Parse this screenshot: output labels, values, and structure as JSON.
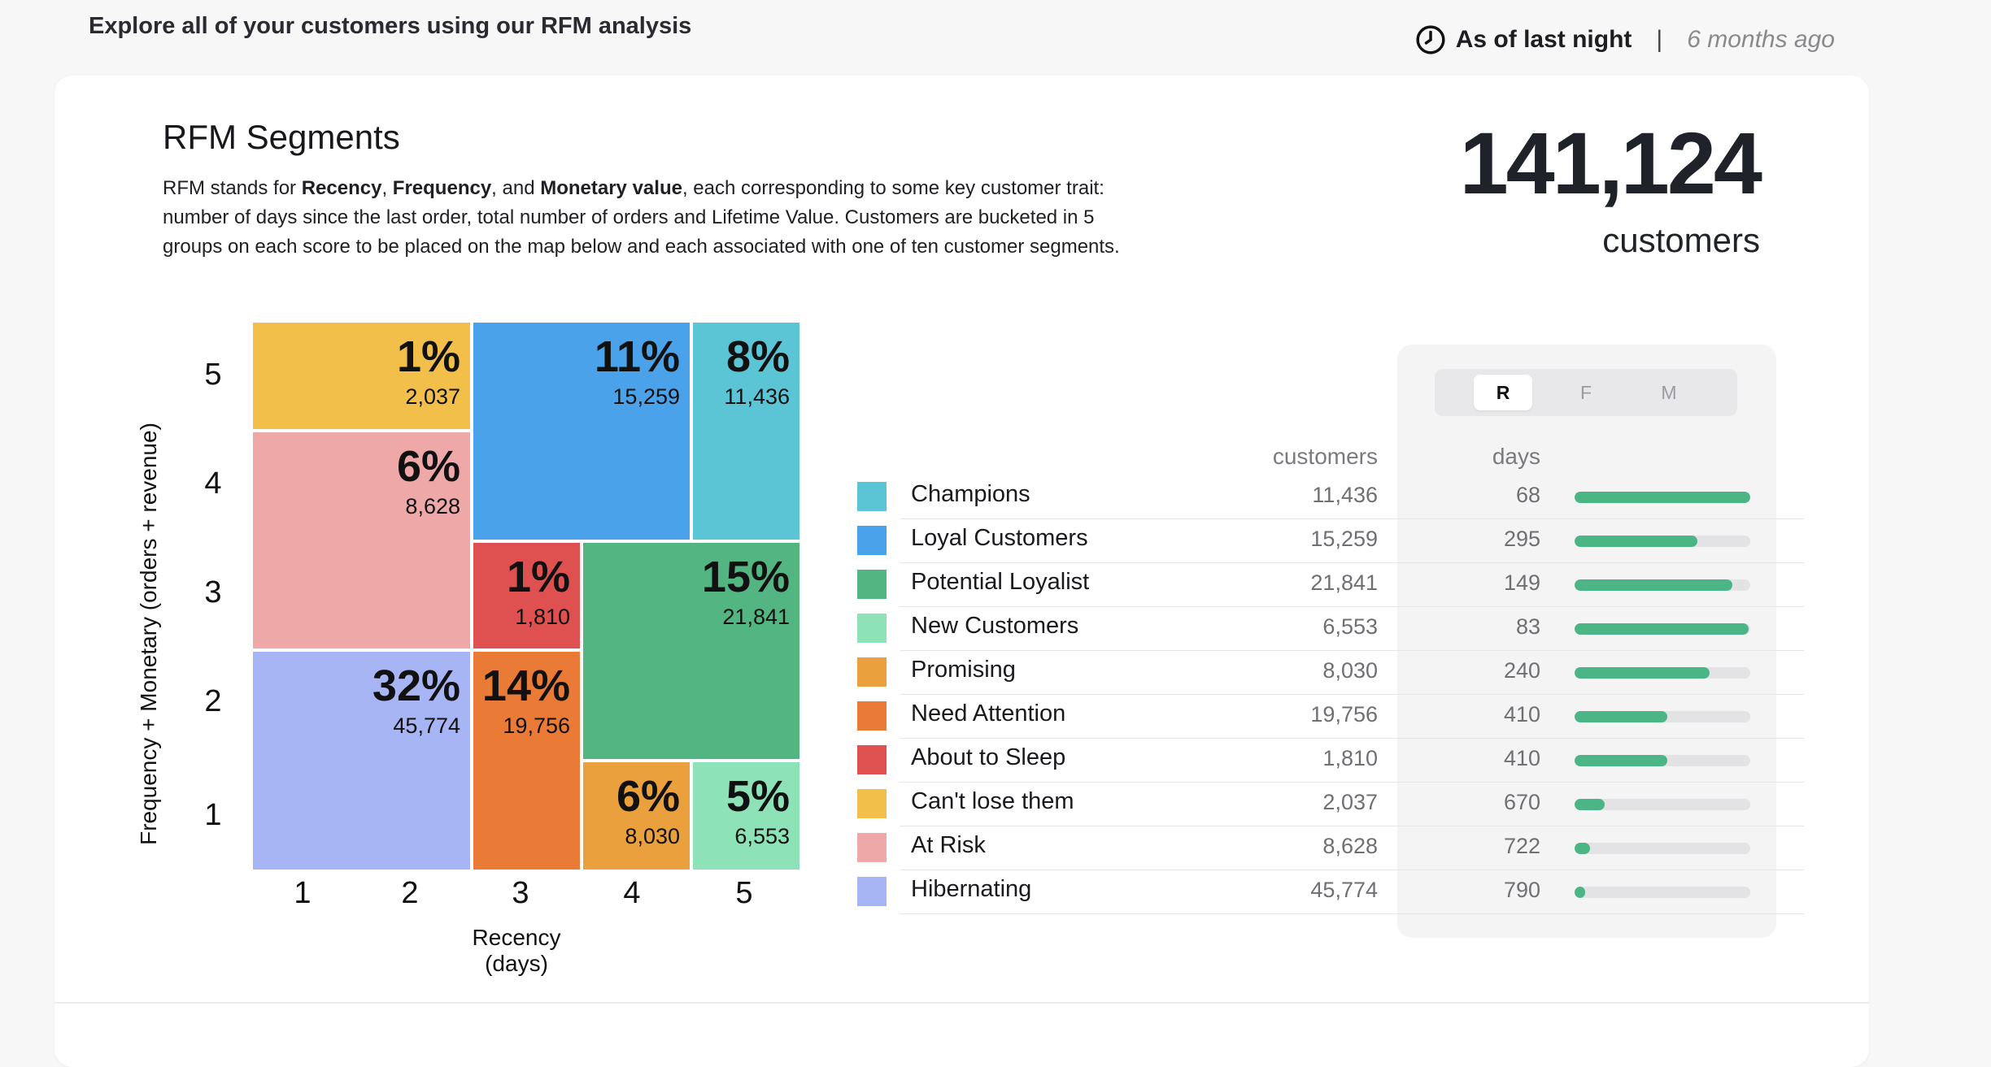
{
  "header": {
    "heading": "Explore all of your customers using our RFM analysis",
    "as_of": "As of last night",
    "separator": "|",
    "relative_time": "6 months ago"
  },
  "card": {
    "title": "RFM Segments",
    "desc_parts": [
      "RFM stands for ",
      "Recency",
      ", ",
      "Frequency",
      ", and ",
      "Monetary value",
      ", each corresponding to some key customer trait: number of days since the last order, total number of orders and Lifetime Value. Customers are bucketed in 5 groups on each score to be placed on the map below and each associated with one of ten customer segments."
    ],
    "total_customers": "141,124",
    "total_label": "customers"
  },
  "map": {
    "y_axis_label": "Frequency + Monetary (orders + revenue)",
    "x_axis_label": "Recency (days)",
    "y_ticks": [
      "5",
      "4",
      "3",
      "2",
      "1"
    ],
    "x_ticks": [
      "1",
      "2",
      "3",
      "4",
      "5"
    ],
    "tiles": [
      {
        "segment": "Can't lose them",
        "pct": "1%",
        "count": "2,037",
        "color": "#f2bf4b"
      },
      {
        "segment": "Loyal Customers",
        "pct": "11%",
        "count": "15,259",
        "color": "#4aa3ea"
      },
      {
        "segment": "Champions",
        "pct": "8%",
        "count": "11,436",
        "color": "#5bc5d5"
      },
      {
        "segment": "At Risk",
        "pct": "6%",
        "count": "8,628",
        "color": "#efa8a8"
      },
      {
        "segment": "About to Sleep",
        "pct": "1%",
        "count": "1,810",
        "color": "#df5150"
      },
      {
        "segment": "Potential Loyalist",
        "pct": "15%",
        "count": "21,841",
        "color": "#53b682"
      },
      {
        "segment": "Hibernating",
        "pct": "32%",
        "count": "45,774",
        "color": "#a7b5f5"
      },
      {
        "segment": "Need Attention",
        "pct": "14%",
        "count": "19,756",
        "color": "#ea7b36"
      },
      {
        "segment": "Promising",
        "pct": "6%",
        "count": "8,030",
        "color": "#e9a03d"
      },
      {
        "segment": "New Customers",
        "pct": "5%",
        "count": "6,553",
        "color": "#8de2b7"
      }
    ]
  },
  "toggle": {
    "options": [
      "R",
      "F",
      "M"
    ],
    "selected": "R"
  },
  "table": {
    "col_customers": "customers",
    "col_days": "days",
    "bar_color": "#4cb585",
    "rows": [
      {
        "name": "Champions",
        "customers": "11,436",
        "days": "68",
        "color": "#5bc5d5",
        "bar": 1.0
      },
      {
        "name": "Loyal Customers",
        "customers": "15,259",
        "days": "295",
        "color": "#4aa3ea",
        "bar": 0.7
      },
      {
        "name": "Potential Loyalist",
        "customers": "21,841",
        "days": "149",
        "color": "#53b682",
        "bar": 0.9
      },
      {
        "name": "New Customers",
        "customers": "6,553",
        "days": "83",
        "color": "#8de2b7",
        "bar": 0.99
      },
      {
        "name": "Promising",
        "customers": "8,030",
        "days": "240",
        "color": "#e9a03d",
        "bar": 0.77
      },
      {
        "name": "Need Attention",
        "customers": "19,756",
        "days": "410",
        "color": "#ea7b36",
        "bar": 0.53
      },
      {
        "name": "About to Sleep",
        "customers": "1,810",
        "days": "410",
        "color": "#df5150",
        "bar": 0.53
      },
      {
        "name": "Can't lose them",
        "customers": "2,037",
        "days": "670",
        "color": "#f2bf4b",
        "bar": 0.17
      },
      {
        "name": "At Risk",
        "customers": "8,628",
        "days": "722",
        "color": "#efa8a8",
        "bar": 0.09
      },
      {
        "name": "Hibernating",
        "customers": "45,774",
        "days": "790",
        "color": "#a7b5f5",
        "bar": 0.06
      }
    ]
  }
}
